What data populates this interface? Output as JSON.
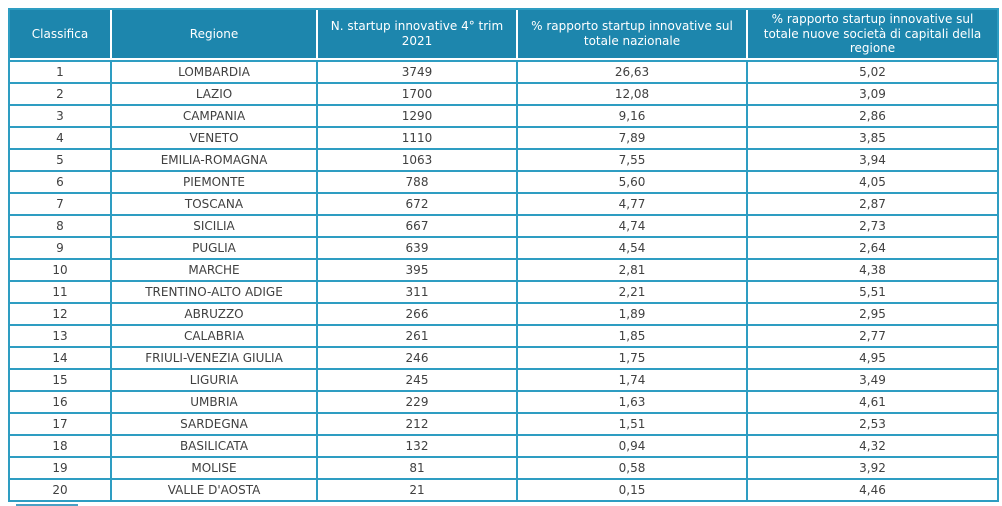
{
  "colors": {
    "header_bg": "#1d86ad",
    "header_text": "#ffffff",
    "cell_border": "#2e9dc2",
    "body_text": "#404040",
    "accent_bar": "#4aa0c4"
  },
  "chart_data": {
    "type": "table",
    "title": "",
    "columns": [
      "Classifica",
      "Regione",
      "N. startup innovative 4° trim 2021",
      "% rapporto startup innovative sul totale nazionale",
      "% rapporto startup innovative sul totale nuove società di capitali della regione"
    ],
    "rows": [
      [
        "1",
        "LOMBARDIA",
        "3749",
        "26,63",
        "5,02"
      ],
      [
        "2",
        "LAZIO",
        "1700",
        "12,08",
        "3,09"
      ],
      [
        "3",
        "CAMPANIA",
        "1290",
        "9,16",
        "2,86"
      ],
      [
        "4",
        "VENETO",
        "1110",
        "7,89",
        "3,85"
      ],
      [
        "5",
        "EMILIA-ROMAGNA",
        "1063",
        "7,55",
        "3,94"
      ],
      [
        "6",
        "PIEMONTE",
        "788",
        "5,60",
        "4,05"
      ],
      [
        "7",
        "TOSCANA",
        "672",
        "4,77",
        "2,87"
      ],
      [
        "8",
        "SICILIA",
        "667",
        "4,74",
        "2,73"
      ],
      [
        "9",
        "PUGLIA",
        "639",
        "4,54",
        "2,64"
      ],
      [
        "10",
        "MARCHE",
        "395",
        "2,81",
        "4,38"
      ],
      [
        "11",
        "TRENTINO-ALTO ADIGE",
        "311",
        "2,21",
        "5,51"
      ],
      [
        "12",
        "ABRUZZO",
        "266",
        "1,89",
        "2,95"
      ],
      [
        "13",
        "CALABRIA",
        "261",
        "1,85",
        "2,77"
      ],
      [
        "14",
        "FRIULI-VENEZIA GIULIA",
        "246",
        "1,75",
        "4,95"
      ],
      [
        "15",
        "LIGURIA",
        "245",
        "1,74",
        "3,49"
      ],
      [
        "16",
        "UMBRIA",
        "229",
        "1,63",
        "4,61"
      ],
      [
        "17",
        "SARDEGNA",
        "212",
        "1,51",
        "2,53"
      ],
      [
        "18",
        "BASILICATA",
        "132",
        "0,94",
        "4,32"
      ],
      [
        "19",
        "MOLISE",
        "81",
        "0,58",
        "3,92"
      ],
      [
        "20",
        "VALLE D'AOSTA",
        "21",
        "0,15",
        "4,46"
      ]
    ]
  }
}
